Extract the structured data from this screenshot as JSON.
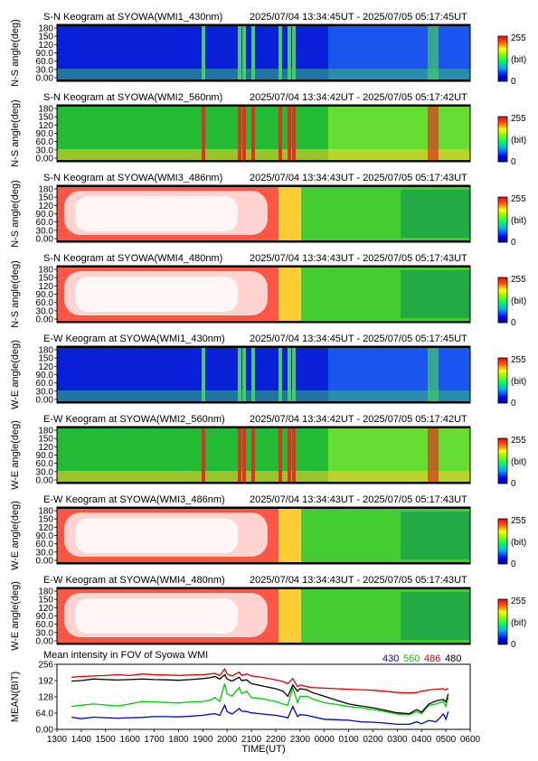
{
  "keograms": [
    {
      "title": "S-N Keogram at SYOWA(WMI1_430nm)",
      "time_range": "2025/07/04 13:34:45UT - 2025/07/05 05:17:45UT",
      "ylabel": "N-S angle(deg)",
      "scheme": "blue"
    },
    {
      "title": "S-N Keogram at SYOWA(WMI2_560nm)",
      "time_range": "2025/07/04 13:34:42UT - 2025/07/05 05:17:42UT",
      "ylabel": "N-S angle(deg)",
      "scheme": "green"
    },
    {
      "title": "S-N Keogram at SYOWA(WMI3_486nm)",
      "time_range": "2025/07/04 13:34:43UT - 2025/07/05 05:17:43UT",
      "ylabel": "N-S angle(deg)",
      "scheme": "red"
    },
    {
      "title": "S-N Keogram at SYOWA(WMI4_480nm)",
      "time_range": "2025/07/04 13:34:43UT - 2025/07/05 05:17:43UT",
      "ylabel": "N-S angle(deg)",
      "scheme": "red"
    },
    {
      "title": "E-W Keogram at SYOWA(WMI1_430nm)",
      "time_range": "2025/07/04 13:34:45UT - 2025/07/05 05:17:45UT",
      "ylabel": "W-E angle(deg)",
      "scheme": "blue"
    },
    {
      "title": "E-W Keogram at SYOWA(WMI2_560nm)",
      "time_range": "2025/07/04 13:34:42UT - 2025/07/05 05:17:42UT",
      "ylabel": "W-E angle(deg)",
      "scheme": "green"
    },
    {
      "title": "E-W Keogram at SYOWA(WMI3_486nm)",
      "time_range": "2025/07/04 13:34:43UT - 2025/07/05 05:17:43UT",
      "ylabel": "W-E angle(deg)",
      "scheme": "red"
    },
    {
      "title": "E-W Keogram at SYOWA(WMI4_480nm)",
      "time_range": "2025/07/04 13:34:43UT - 2025/07/05 05:17:43UT",
      "ylabel": "W-E angle(deg)",
      "scheme": "red"
    }
  ],
  "keogram_yticks": [
    "0.00",
    "30.0",
    "60.0",
    "90.0",
    "120",
    "150",
    "180"
  ],
  "colorbar": {
    "max_label": "255",
    "unit_label": "(bit)",
    "min_label": "0"
  },
  "colors": {
    "c430": "#0000cc",
    "c560": "#00cc00",
    "c486": "#dd0000",
    "c480": "#000000"
  },
  "chart_data": {
    "type": "line",
    "title": "Mean intensity in FOV of Syowa WMI",
    "xlabel": "TIME(UT)",
    "ylabel": "MEAN(BIT)",
    "xticks": [
      "1300",
      "1400",
      "1500",
      "1600",
      "1700",
      "1800",
      "1900",
      "2000",
      "2100",
      "2200",
      "2300",
      "0000",
      "0100",
      "0200",
      "0300",
      "0400",
      "0500",
      "0600"
    ],
    "yticks": [
      "0.00",
      "64.0",
      "128",
      "192",
      "256"
    ],
    "ylim": [
      0,
      256
    ],
    "x": [
      13.6,
      14.0,
      14.5,
      15.0,
      15.5,
      16.0,
      16.5,
      17.0,
      17.5,
      18.0,
      18.5,
      19.0,
      19.3,
      19.5,
      19.7,
      19.9,
      20.0,
      20.2,
      20.5,
      20.6,
      20.8,
      21.0,
      21.5,
      22.0,
      22.3,
      22.5,
      22.7,
      22.9,
      23.0,
      23.3,
      23.5,
      24.0,
      24.5,
      25.0,
      25.5,
      26.0,
      26.5,
      27.0,
      27.5,
      27.8,
      28.0,
      28.3,
      28.6,
      28.9,
      29.0,
      29.1
    ],
    "series": [
      {
        "name": "430",
        "color": "#0000cc",
        "values": [
          48,
          42,
          48,
          46,
          44,
          46,
          47,
          50,
          50,
          49,
          52,
          55,
          60,
          62,
          55,
          95,
          70,
          60,
          82,
          72,
          70,
          65,
          60,
          55,
          50,
          45,
          90,
          50,
          58,
          55,
          50,
          40,
          38,
          36,
          30,
          28,
          25,
          20,
          20,
          30,
          22,
          35,
          30,
          60,
          40,
          70
        ]
      },
      {
        "name": "560",
        "color": "#00cc00",
        "values": [
          90,
          95,
          100,
          96,
          92,
          100,
          110,
          108,
          106,
          104,
          108,
          110,
          115,
          125,
          110,
          180,
          140,
          130,
          165,
          140,
          150,
          125,
          120,
          110,
          100,
          95,
          165,
          105,
          130,
          130,
          120,
          105,
          98,
          90,
          85,
          78,
          70,
          60,
          58,
          70,
          62,
          95,
          100,
          110,
          90,
          125
        ]
      },
      {
        "name": "486",
        "color": "#dd0000",
        "values": [
          205,
          208,
          210,
          212,
          215,
          212,
          218,
          215,
          214,
          212,
          214,
          215,
          218,
          220,
          212,
          238,
          218,
          210,
          225,
          212,
          218,
          210,
          204,
          195,
          188,
          180,
          200,
          168,
          175,
          168,
          165,
          162,
          160,
          158,
          156,
          154,
          150,
          145,
          143,
          145,
          150,
          155,
          158,
          160,
          155,
          162
        ]
      },
      {
        "name": "480",
        "color": "#000000",
        "values": [
          190,
          192,
          198,
          196,
          194,
          196,
          198,
          196,
          195,
          193,
          196,
          200,
          203,
          208,
          198,
          215,
          198,
          190,
          205,
          192,
          195,
          180,
          170,
          160,
          150,
          130,
          175,
          150,
          160,
          155,
          145,
          130,
          115,
          100,
          92,
          85,
          75,
          65,
          62,
          78,
          68,
          100,
          112,
          118,
          108,
          140
        ]
      }
    ]
  }
}
